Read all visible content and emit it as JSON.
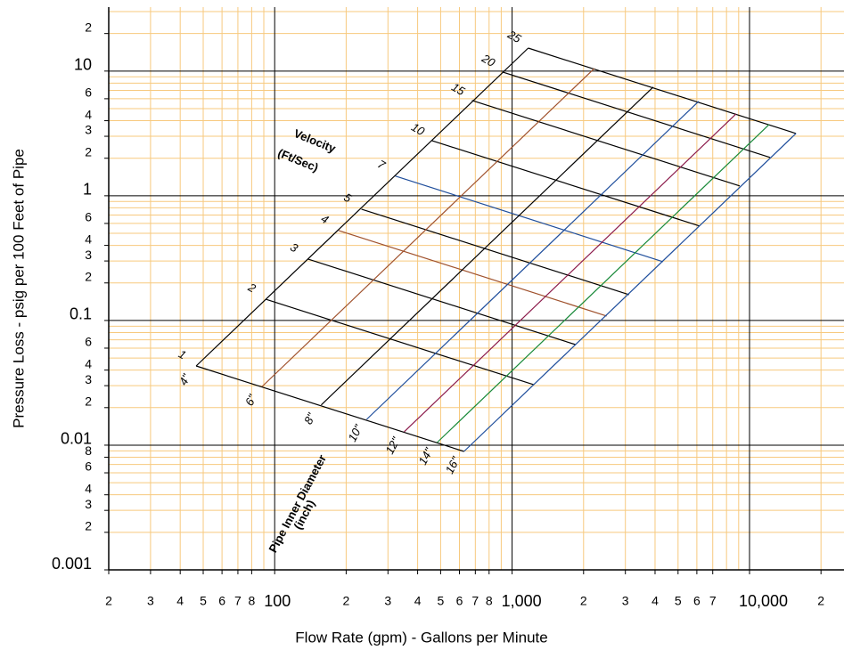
{
  "chart_data": {
    "type": "nomograph",
    "x_label": "Flow Rate (gpm) - Gallons per Minute",
    "y_label": "Pressure Loss - psig per 100 Feet of Pipe",
    "annotations": [
      "Velocity",
      "(Ft/Sec)",
      "Pipe Inner Diameter",
      "(inch)"
    ],
    "log_x": true,
    "log_y": true,
    "grid": true,
    "minor_grid": true,
    "grid_color": "#000000",
    "minor_grid_color": "#f7c97e",
    "xlim": [
      20,
      25000
    ],
    "xticks": [
      {
        "value": 20,
        "label": "2"
      },
      {
        "value": 30,
        "label": "3"
      },
      {
        "value": 40,
        "label": "4"
      },
      {
        "value": 50,
        "label": "5"
      },
      {
        "value": 60,
        "label": "6"
      },
      {
        "value": 70,
        "label": "7"
      },
      {
        "value": 80,
        "label": "8"
      },
      100,
      {
        "value": 200,
        "label": "2"
      },
      {
        "value": 300,
        "label": "3"
      },
      {
        "value": 400,
        "label": "4"
      },
      {
        "value": 500,
        "label": "5"
      },
      {
        "value": 600,
        "label": "6"
      },
      {
        "value": 700,
        "label": "7"
      },
      {
        "value": 800,
        "label": "8"
      },
      {
        "value": 1000,
        "label": "1,000"
      },
      {
        "value": 2000,
        "label": "2"
      },
      {
        "value": 3000,
        "label": "3"
      },
      {
        "value": 4000,
        "label": "4"
      },
      {
        "value": 5000,
        "label": "5"
      },
      {
        "value": 6000,
        "label": "6"
      },
      {
        "value": 7000,
        "label": "7"
      },
      {
        "value": 10000,
        "label": "10,000"
      },
      {
        "value": 20000,
        "label": "2"
      }
    ],
    "ylim": [
      0.001,
      30
    ],
    "yticks": [
      {
        "value": 20,
        "label": "2"
      },
      10,
      {
        "value": 6,
        "label": "6"
      },
      {
        "value": 4,
        "label": "4"
      },
      {
        "value": 3,
        "label": "3"
      },
      {
        "value": 2,
        "label": "2"
      },
      1,
      {
        "value": 0.6,
        "label": "6"
      },
      {
        "value": 0.4,
        "label": "4"
      },
      {
        "value": 0.3,
        "label": "3"
      },
      {
        "value": 0.2,
        "label": "2"
      },
      0.1,
      {
        "value": 0.06,
        "label": "6"
      },
      {
        "value": 0.04,
        "label": "4"
      },
      {
        "value": 0.03,
        "label": "3"
      },
      {
        "value": 0.02,
        "label": "2"
      },
      0.01,
      {
        "value": 0.008,
        "label": "8"
      },
      {
        "value": 0.006,
        "label": "6"
      },
      {
        "value": 0.004,
        "label": "4"
      },
      {
        "value": 0.003,
        "label": "3"
      },
      {
        "value": 0.002,
        "label": "2"
      },
      0.001
    ],
    "velocity_lines": [
      {
        "name": "1",
        "color": "#000000",
        "x": [
          46.7,
          627
        ],
        "values": [
          0.0432,
          0.0089
        ]
      },
      {
        "name": "2",
        "color": "#000000",
        "x": [
          91.7,
          1231
        ],
        "values": [
          0.148,
          0.0306
        ]
      },
      {
        "name": "3",
        "color": "#000000",
        "x": [
          138,
          1849
        ],
        "values": [
          0.311,
          0.0641
        ]
      },
      {
        "name": "4",
        "color": "#a0522d",
        "x": [
          186,
          2503
        ],
        "values": [
          0.526,
          0.1085
        ]
      },
      {
        "name": "5",
        "color": "#000000",
        "x": [
          232,
          3107
        ],
        "values": [
          0.781,
          0.161
        ]
      },
      {
        "name": "7",
        "color": "#1f4e9c",
        "x": [
          322,
          4320
        ],
        "values": [
          1.44,
          0.296
        ]
      },
      {
        "name": "10",
        "color": "#000000",
        "x": [
          459,
          6159
        ],
        "values": [
          2.77,
          0.572
        ]
      },
      {
        "name": "15",
        "color": "#000000",
        "x": [
          678,
          9094
        ],
        "values": [
          5.81,
          1.2
        ]
      },
      {
        "name": "20",
        "color": "#000000",
        "x": [
          909,
          12202
        ],
        "values": [
          9.84,
          2.03
        ]
      },
      {
        "name": "25",
        "color": "#000000",
        "x": [
          1169,
          15690
        ],
        "values": [
          15.3,
          3.16
        ]
      }
    ],
    "diameter_lines": [
      {
        "name": "4\"",
        "color": "#000000",
        "x": [
          46.7,
          1169
        ],
        "values": [
          0.0432,
          15.3
        ]
      },
      {
        "name": "6\"",
        "color": "#a0522d",
        "x": [
          88.6,
          2218
        ],
        "values": [
          0.0296,
          10.5
        ]
      },
      {
        "name": "8\"",
        "color": "#000000",
        "x": [
          157,
          3927
        ],
        "values": [
          0.021,
          7.44
        ]
      },
      {
        "name": "10\"",
        "color": "#1f4e9c",
        "x": [
          244,
          6105
        ],
        "values": [
          0.0161,
          5.72
        ]
      },
      {
        "name": "12\"",
        "color": "#8b1a4a",
        "x": [
          351,
          8785
        ],
        "values": [
          0.0128,
          4.54
        ]
      },
      {
        "name": "14\"",
        "color": "#1a8a3a",
        "x": [
          483,
          12100
        ],
        "values": [
          0.0105,
          3.73
        ]
      },
      {
        "name": "16\"",
        "color": "#1f4e9c",
        "x": [
          627,
          15690
        ],
        "values": [
          0.0089,
          3.16
        ]
      }
    ]
  }
}
